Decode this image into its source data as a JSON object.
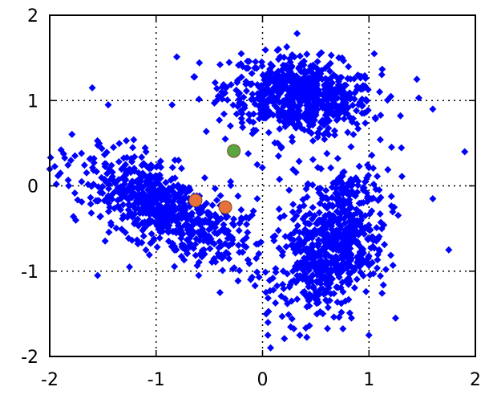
{
  "chart_data": {
    "type": "scatter",
    "xlim": [
      -2,
      2
    ],
    "ylim": [
      -2,
      2
    ],
    "x_ticks": [
      -2,
      -1,
      0,
      1,
      2
    ],
    "y_ticks": [
      -2,
      -1,
      0,
      1,
      2
    ],
    "x_tick_labels": [
      "-2",
      "-1",
      "0",
      "1",
      "2"
    ],
    "y_tick_labels": [
      "-2",
      "-1",
      "0",
      "1",
      "2"
    ],
    "grid": "dotted",
    "legend": "none",
    "title": "",
    "xlabel": "",
    "ylabel": "",
    "series": [
      {
        "marker": "diamond",
        "color": "#0000ff",
        "clusters": [
          {
            "center": [
              0.35,
              1.05
            ],
            "spread": [
              0.35,
              0.22
            ],
            "rotation_deg": -10,
            "count": 700
          },
          {
            "center": [
              -0.95,
              -0.25
            ],
            "spread": [
              0.45,
              0.2
            ],
            "rotation_deg": -35,
            "count": 700
          },
          {
            "center": [
              0.65,
              -0.65
            ],
            "spread": [
              0.22,
              0.45
            ],
            "rotation_deg": -15,
            "count": 700
          }
        ],
        "points": [
          [
            -1.9,
            0.15
          ],
          [
            1.9,
            0.4
          ],
          [
            -1.55,
            -1.05
          ],
          [
            -0.4,
            -1.25
          ],
          [
            0.05,
            -1.75
          ],
          [
            -1.6,
            1.15
          ],
          [
            -1.45,
            0.95
          ],
          [
            1.6,
            0.9
          ],
          [
            1.75,
            -0.75
          ],
          [
            1.6,
            -0.15
          ],
          [
            0.15,
            1.6
          ],
          [
            1.05,
            1.55
          ],
          [
            -0.85,
            0.95
          ],
          [
            -1.25,
            -0.95
          ],
          [
            -0.6,
            -1.05
          ],
          [
            1.25,
            -1.55
          ],
          [
            0.35,
            -1.75
          ],
          [
            -1.7,
            0.05
          ],
          [
            1.45,
            1.25
          ],
          [
            -0.2,
            1.55
          ],
          [
            0.25,
            -0.05
          ],
          [
            -0.05,
            0.25
          ],
          [
            0.15,
            0.35
          ],
          [
            -0.15,
            -0.45
          ],
          [
            0.1,
            -0.6
          ],
          [
            -0.35,
            0.55
          ],
          [
            0.55,
            0.2
          ],
          [
            -0.3,
            0.05
          ],
          [
            0.35,
            -0.25
          ],
          [
            -0.05,
            -0.15
          ]
        ]
      },
      {
        "marker": "circle",
        "color": "#e8703a",
        "points": [
          [
            -0.63,
            -0.17
          ],
          [
            -0.35,
            -0.25
          ]
        ]
      },
      {
        "marker": "circle",
        "color": "#5aa640",
        "points": [
          [
            -0.27,
            0.41
          ]
        ]
      }
    ]
  }
}
